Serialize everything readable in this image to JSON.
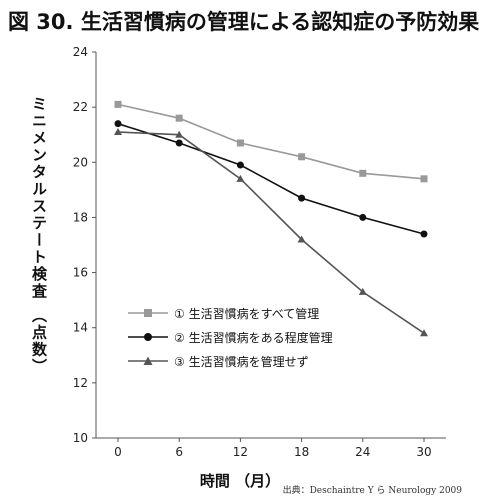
{
  "title": "図 30. 生活習慣病の管理による認知症の予防効果",
  "source": "出典：Deschaintre Y ら Neurology 2009",
  "chart_data": {
    "type": "line",
    "title": "図 30. 生活習慣病の管理による認知症の予防効果",
    "xlabel": "時間 （月）",
    "ylabel": "ミニメンタルステート検査 （点数）",
    "x": [
      0,
      6,
      12,
      18,
      24,
      30
    ],
    "xticks": [
      "0",
      "6",
      "12",
      "18",
      "24",
      "30"
    ],
    "yticks": [
      "10",
      "12",
      "14",
      "16",
      "18",
      "20",
      "22",
      "24"
    ],
    "ylim": [
      10,
      24
    ],
    "grid": false,
    "legend_position": "center-left",
    "series": [
      {
        "name": "① 生活習慣病をすべて管理",
        "marker": "square",
        "color": "#999999",
        "values": [
          22.1,
          21.6,
          20.7,
          20.2,
          19.6,
          19.4
        ]
      },
      {
        "name": "② 生活習慣病をある程度管理",
        "marker": "circle",
        "color": "#111111",
        "values": [
          21.4,
          20.7,
          19.9,
          18.7,
          18.0,
          17.4
        ]
      },
      {
        "name": "③ 生活習慣病を管理せず",
        "marker": "triangle",
        "color": "#555555",
        "values": [
          21.1,
          21.0,
          19.4,
          17.2,
          15.3,
          13.8
        ]
      }
    ]
  }
}
